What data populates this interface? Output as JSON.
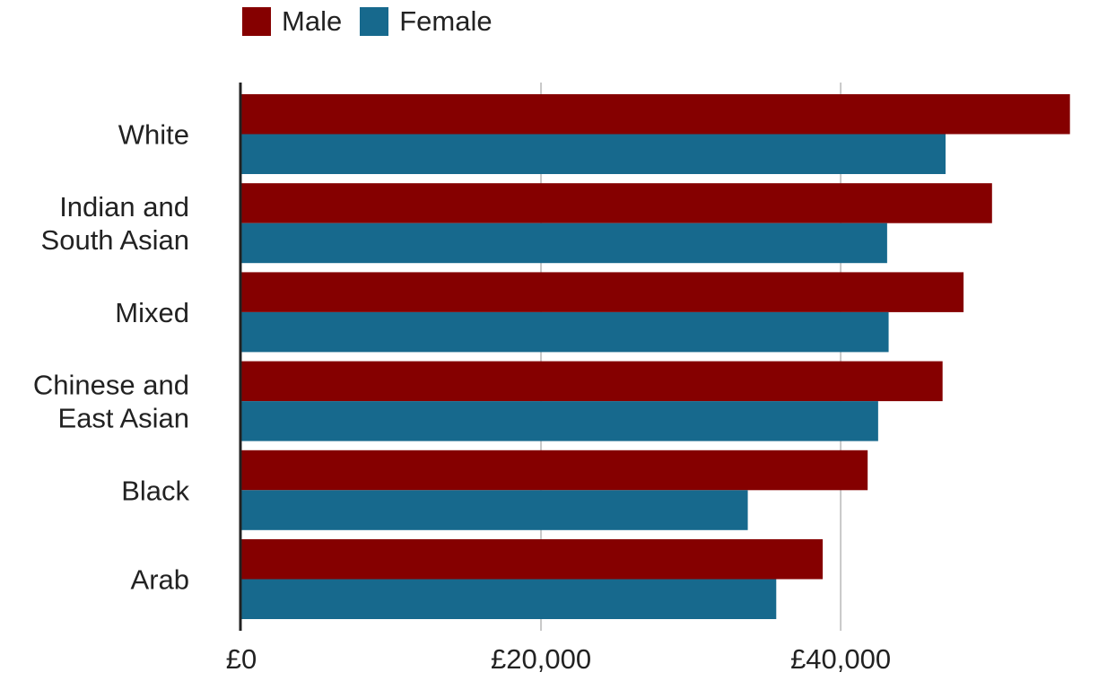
{
  "chart_data": {
    "type": "bar",
    "orientation": "horizontal",
    "title": "",
    "xlabel": "",
    "ylabel": "",
    "categories": [
      "White",
      "Indian and\nSouth Asian",
      "Mixed",
      "Chinese and\nEast Asian",
      "Black",
      "Arab"
    ],
    "series": [
      {
        "name": "Male",
        "color": "#850000",
        "values": [
          55300,
          50100,
          48200,
          46800,
          41800,
          38800
        ]
      },
      {
        "name": "Female",
        "color": "#17698d",
        "values": [
          47000,
          43100,
          43200,
          42500,
          33800,
          35700
        ]
      }
    ],
    "xlim": [
      0,
      55500
    ],
    "xticks": [
      0,
      20000,
      40000
    ],
    "xtick_labels": [
      "£0",
      "£20,000",
      "£40,000"
    ],
    "grid": "vertical",
    "legend_position": "top-left"
  }
}
